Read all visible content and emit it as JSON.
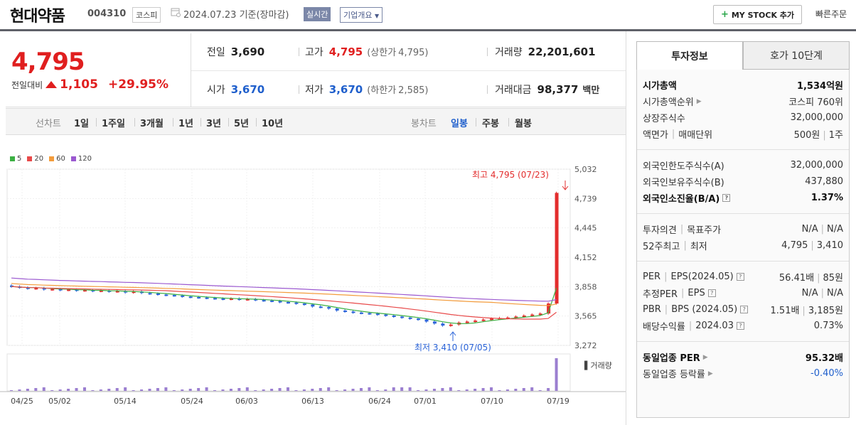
{
  "header": {
    "name": "현대약품",
    "code": "004310",
    "market": "코스피",
    "date": "2024.07.23 기준(장마감)",
    "realtime": "실시간",
    "corp_info": "기업개요",
    "mystock": "MY STOCK 추가",
    "quick_order": "빠른주문"
  },
  "price": {
    "current": "4,795",
    "change_label": "전일대비",
    "change": "1,105",
    "pct": "+29.95%"
  },
  "summary": {
    "prev_label": "전일",
    "prev": "3,690",
    "high_label": "고가",
    "high": "4,795",
    "upper_label": "(상한가",
    "upper": "4,795)",
    "volume_label": "거래량",
    "volume": "22,201,601",
    "open_label": "시가",
    "open": "3,670",
    "low_label": "저가",
    "low": "3,670",
    "lower_label": "(하한가",
    "lower": "2,585)",
    "amount_label": "거래대금",
    "amount": "98,377",
    "amount_unit": "백만"
  },
  "chart_toolbar": {
    "line_label": "선차트",
    "periods": [
      "1일",
      "1주일",
      "3개월",
      "1년",
      "3년",
      "5년",
      "10년"
    ],
    "candle_label": "봉차트",
    "candles": [
      "일봉",
      "주봉",
      "월봉"
    ],
    "active_candle": "일봉"
  },
  "chart_data": {
    "type": "candlestick",
    "legend": [
      {
        "name": "5",
        "color": "#3cb043"
      },
      {
        "name": "20",
        "color": "#e84a4a"
      },
      {
        "name": "60",
        "color": "#f39c3c"
      },
      {
        "name": "120",
        "color": "#9b59d0"
      }
    ],
    "ylim": [
      3272,
      5032
    ],
    "y_ticks": [
      "5,032",
      "4,739",
      "4,445",
      "4,152",
      "3,858",
      "3,565",
      "3,272"
    ],
    "x_labels": [
      "04/25",
      "05/02",
      "05/14",
      "05/24",
      "06/03",
      "06/13",
      "06/24",
      "07/01",
      "07/10",
      "07/19"
    ],
    "high_note": "최고 4,795 (07/23)",
    "low_note": "최저 3,410 (07/05)",
    "volume_label": "거래량",
    "closes": [
      3860,
      3850,
      3840,
      3845,
      3830,
      3835,
      3825,
      3830,
      3820,
      3825,
      3815,
      3820,
      3810,
      3815,
      3800,
      3810,
      3795,
      3790,
      3780,
      3775,
      3770,
      3760,
      3755,
      3750,
      3745,
      3740,
      3735,
      3740,
      3730,
      3735,
      3725,
      3720,
      3715,
      3705,
      3700,
      3690,
      3680,
      3660,
      3655,
      3640,
      3620,
      3610,
      3600,
      3595,
      3590,
      3580,
      3570,
      3560,
      3550,
      3540,
      3530,
      3510,
      3490,
      3470,
      3480,
      3500,
      3510,
      3520,
      3530,
      3540,
      3545,
      3550,
      3560,
      3570,
      3580,
      3590,
      3690,
      4795
    ]
  },
  "panel": {
    "tab_active": "투자정보",
    "tab_inactive": "호가 10단계",
    "g1": [
      {
        "k": "시가총액",
        "v": "1,534억원",
        "bold": true
      },
      {
        "k": "시가총액순위",
        "v": "코스피 760위",
        "arrow": true
      },
      {
        "k": "상장주식수",
        "v": "32,000,000"
      },
      {
        "k": "액면가",
        "k2": "매매단위",
        "v": "500원",
        "v2": "1주"
      }
    ],
    "g2": [
      {
        "k": "외국인한도주식수(A)",
        "v": "32,000,000"
      },
      {
        "k": "외국인보유주식수(B)",
        "v": "437,880"
      },
      {
        "k": "외국인소진율(B/A)",
        "v": "1.37%",
        "bold": true,
        "qm": true
      }
    ],
    "g3": [
      {
        "k": "투자의견",
        "k2": "목표주가",
        "v": "N/A",
        "v2": "N/A"
      },
      {
        "k": "52주최고",
        "k2": "최저",
        "v": "4,795",
        "v2": "3,410"
      }
    ],
    "g4": [
      {
        "k": "PER",
        "k2": "EPS(2024.05)",
        "v": "56.41배",
        "v2": "85원",
        "qm": true
      },
      {
        "k": "추정PER",
        "k2": "EPS",
        "v": "N/A",
        "v2": "N/A",
        "qm": true
      },
      {
        "k": "PBR",
        "k2": "BPS (2024.05)",
        "v": "1.51배",
        "v2": "3,185원",
        "qm": true
      },
      {
        "k": "배당수익률",
        "k2": "2024.03",
        "v": "0.73%",
        "qm": true
      }
    ],
    "g5": [
      {
        "k": "동일업종 PER",
        "v": "95.32배",
        "bold": true,
        "arrow": true
      },
      {
        "k": "동일업종 등락률",
        "v": "-0.40%",
        "arrow": true,
        "neg": true
      }
    ]
  }
}
